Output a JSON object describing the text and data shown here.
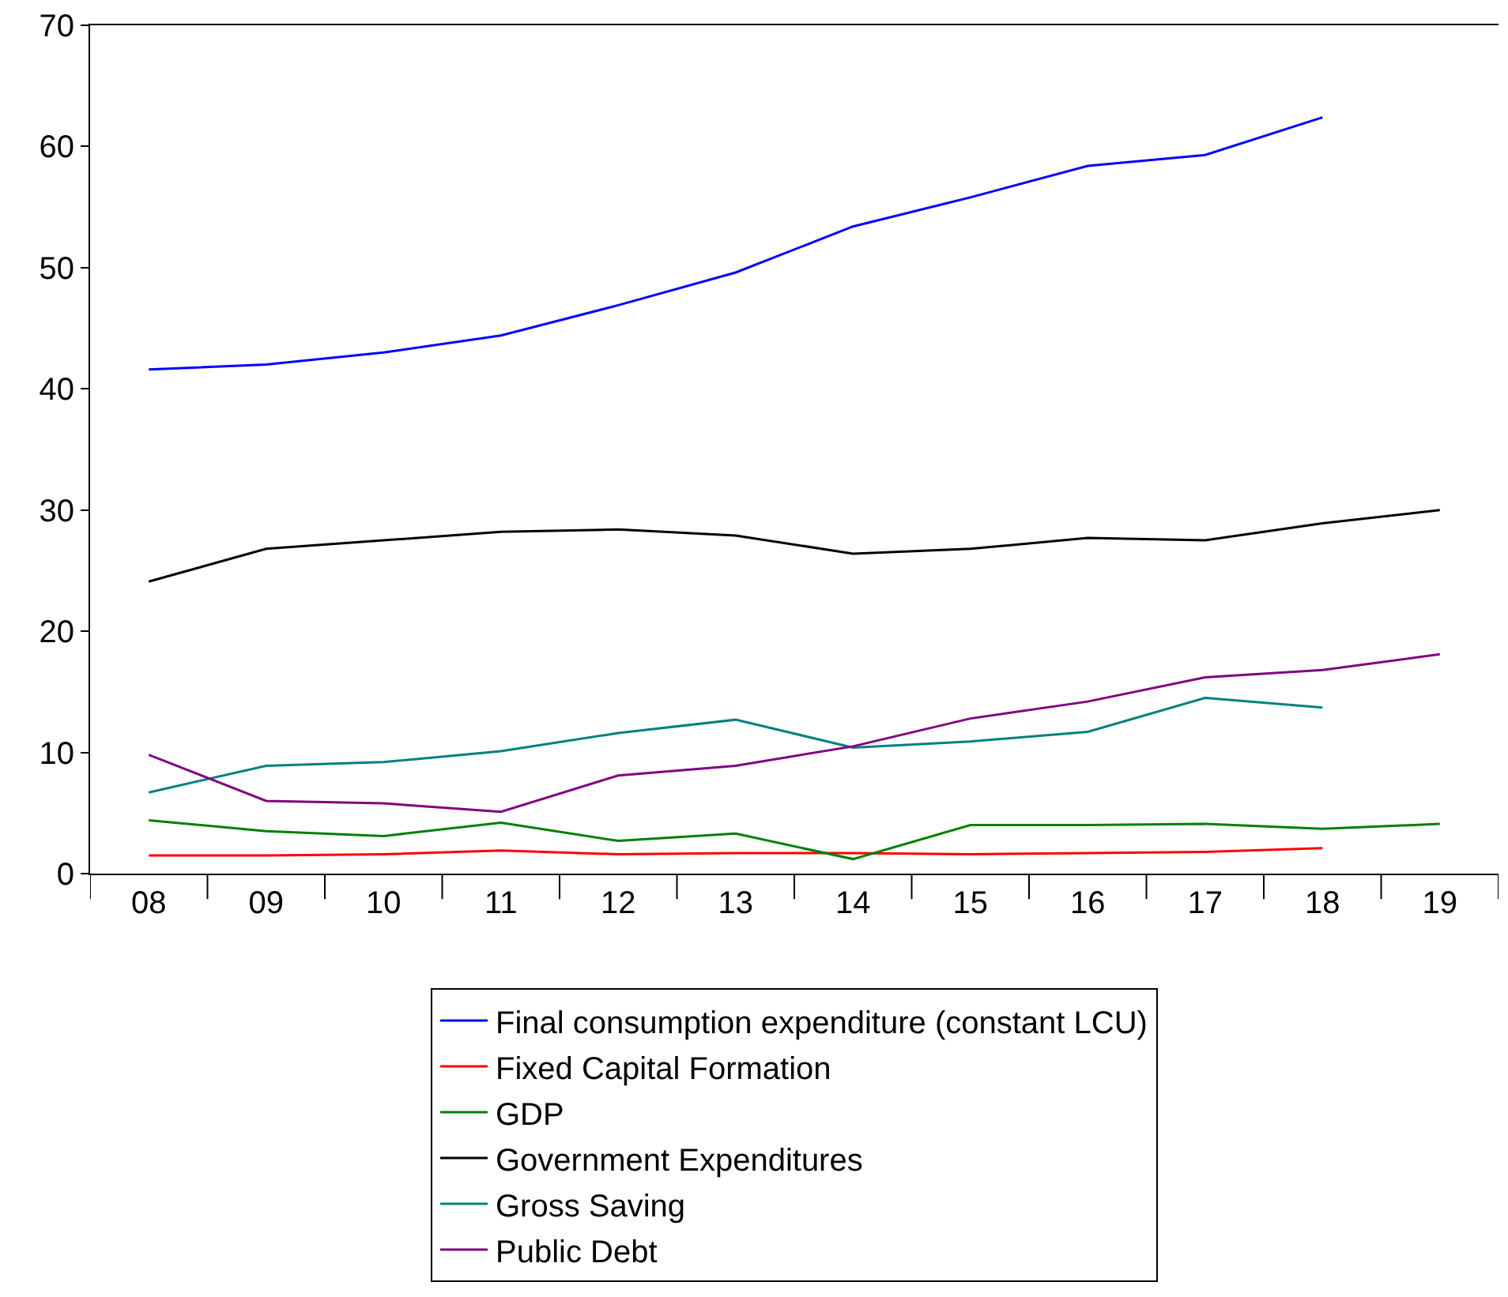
{
  "chart_data": {
    "type": "line",
    "categories": [
      "08",
      "09",
      "10",
      "11",
      "12",
      "13",
      "14",
      "15",
      "16",
      "17",
      "18",
      "19"
    ],
    "series": [
      {
        "name": "Final consumption expenditure (constant LCU)",
        "color": "#0000ff",
        "values": [
          41.6,
          42.0,
          43.0,
          44.4,
          46.9,
          49.6,
          53.4,
          55.8,
          58.4,
          59.3,
          62.4,
          null
        ]
      },
      {
        "name": "Fixed Capital Formation",
        "color": "#ff0000",
        "values": [
          1.5,
          1.5,
          1.6,
          1.9,
          1.6,
          1.7,
          1.7,
          1.6,
          1.7,
          1.8,
          2.1,
          null
        ]
      },
      {
        "name": "GDP",
        "color": "#008000",
        "values": [
          4.4,
          3.5,
          3.1,
          4.2,
          2.7,
          3.3,
          1.2,
          4.0,
          4.0,
          4.1,
          3.7,
          4.1
        ]
      },
      {
        "name": "Government Expenditures",
        "color": "#000000",
        "values": [
          24.1,
          26.8,
          27.5,
          28.2,
          28.4,
          27.9,
          26.4,
          26.8,
          27.7,
          27.5,
          28.9,
          30.0
        ]
      },
      {
        "name": "Gross Saving",
        "color": "#008080",
        "values": [
          6.7,
          8.9,
          9.2,
          10.1,
          11.6,
          12.7,
          10.4,
          10.9,
          11.7,
          14.5,
          13.7,
          null
        ]
      },
      {
        "name": "Public Debt",
        "color": "#800080",
        "values": [
          9.8,
          6.0,
          5.8,
          5.1,
          8.1,
          8.9,
          10.5,
          12.8,
          14.2,
          16.2,
          16.8,
          18.1
        ]
      }
    ],
    "ylim": [
      0,
      70
    ],
    "yticks": [
      0,
      10,
      20,
      30,
      40,
      50,
      60,
      70
    ],
    "grid": false,
    "legend": "bottom",
    "marker": "none",
    "line_style": "solid"
  }
}
